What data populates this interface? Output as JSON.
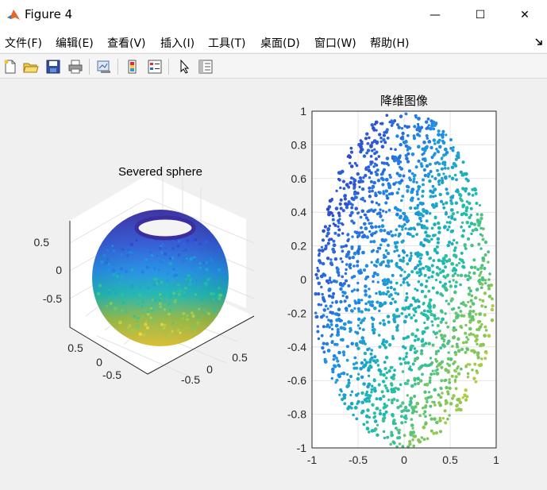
{
  "window": {
    "title": "Figure 4",
    "min_glyph": "—",
    "max_glyph": "☐",
    "close_glyph": "✕"
  },
  "menu": [
    {
      "label": "文件(F)"
    },
    {
      "label": "编辑(E)"
    },
    {
      "label": "查看(V)"
    },
    {
      "label": "插入(I)"
    },
    {
      "label": "工具(T)"
    },
    {
      "label": "桌面(D)"
    },
    {
      "label": "窗口(W)"
    },
    {
      "label": "帮助(H)"
    }
  ],
  "toolbar": [
    {
      "icon": "new-figure-icon"
    },
    {
      "icon": "open-file-icon"
    },
    {
      "icon": "save-icon"
    },
    {
      "icon": "print-icon"
    },
    {
      "icon": "link-plot-icon"
    },
    {
      "icon": "insert-colorbar-icon"
    },
    {
      "icon": "insert-legend-icon"
    },
    {
      "icon": "pointer-icon"
    },
    {
      "icon": "property-inspector-icon"
    }
  ],
  "colors": {
    "parula_dark": "#3e26a8",
    "parula_blue": "#1f8ee6",
    "parula_teal": "#1fbea6",
    "parula_green": "#7fc86a",
    "parula_yellow": "#f9d53a"
  },
  "chart_data": [
    {
      "type": "scatter",
      "projection": "3d",
      "title": "Severed sphere",
      "zticks": [
        "0.5",
        "0",
        "-0.5"
      ],
      "xticks": [
        "0.5",
        "0",
        "-0.5"
      ],
      "yticks": [
        "0",
        "0.5",
        "-0.5"
      ],
      "grid": true,
      "colormap": "parula"
    },
    {
      "type": "scatter",
      "title": "降维图像",
      "xlim": [
        -1,
        1
      ],
      "ylim": [
        -1,
        1
      ],
      "xticks": [
        "-1",
        "-0.5",
        "0",
        "0.5",
        "1"
      ],
      "yticks": [
        "1",
        "0.8",
        "0.6",
        "0.4",
        "0.2",
        "0",
        "-0.2",
        "-0.4",
        "-0.6",
        "-0.8",
        "-1"
      ],
      "grid": true,
      "colormap": "parula"
    }
  ]
}
